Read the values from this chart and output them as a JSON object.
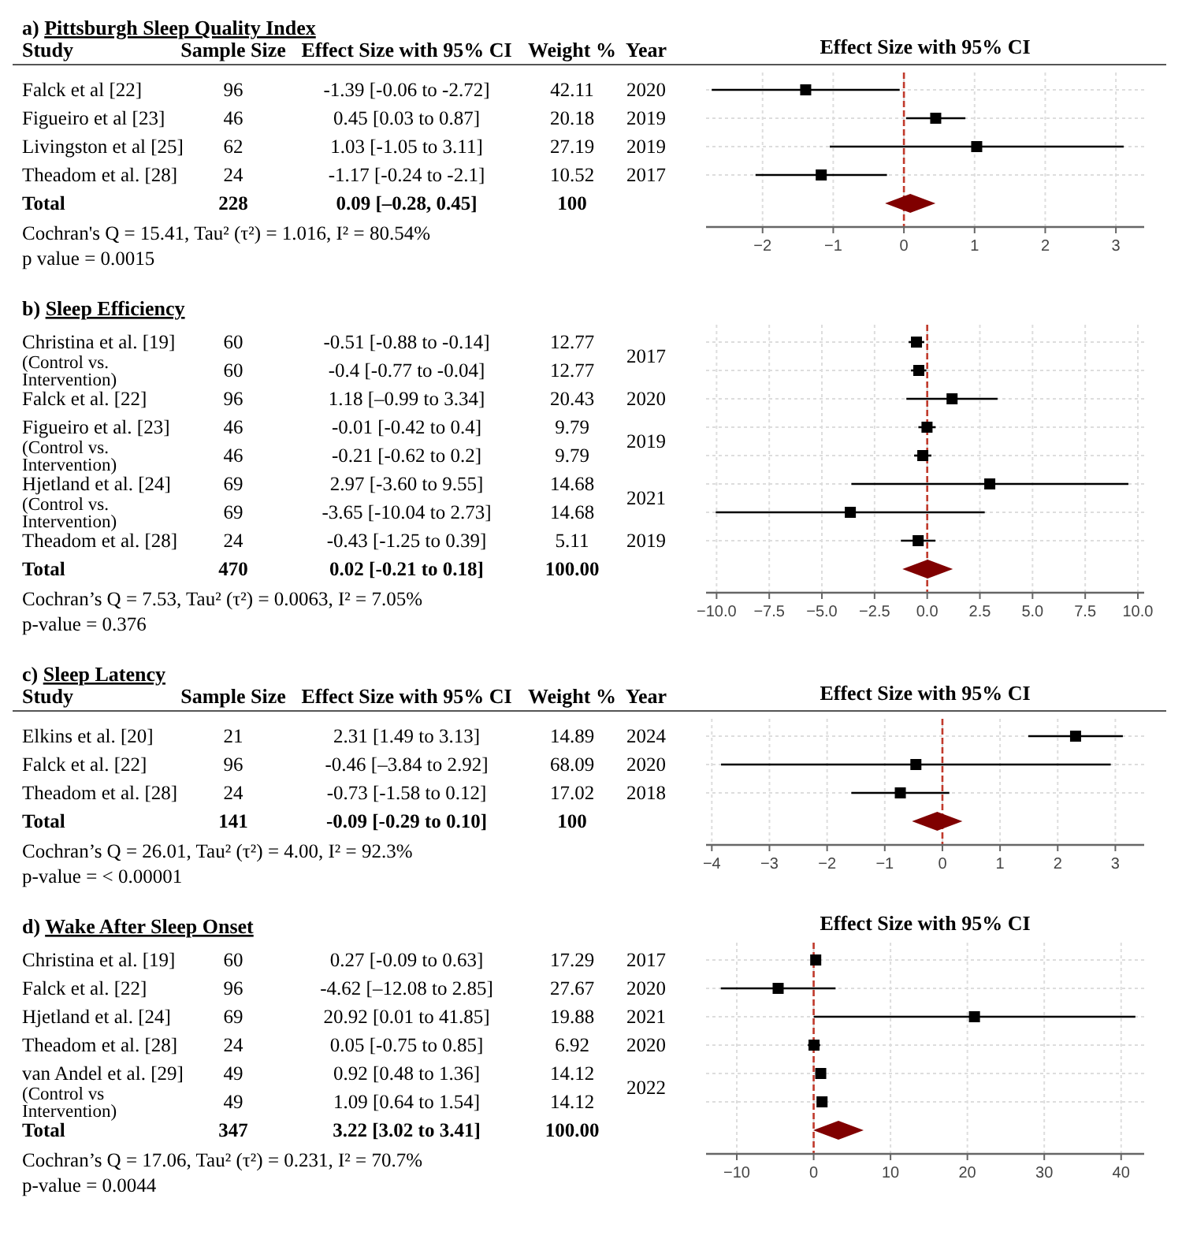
{
  "chart_data": [
    {
      "type": "other",
      "title": "a) Pittsburgh Sleep Quality Index",
      "categories": [
        "Study",
        "Sample Size",
        "Effect Size with 95% CI",
        "Weight %",
        "Year"
      ],
      "cell_labels": [
        [
          "Falck et al  [22]",
          "96",
          "-1.39 [-0.06 to -2.72]",
          "42.11",
          "2020"
        ],
        [
          "Figueiro et al  [23]",
          "46",
          "0.45 [0.03 to 0.87]",
          "20.18",
          "2019"
        ],
        [
          "Livingston et al  [25]",
          "62",
          "1.03 [-1.05 to 3.11]",
          "27.19",
          "2019"
        ],
        [
          "Theadom et al.  [28]",
          "24",
          "-1.17 [-0.24 to -2.1]",
          "10.52",
          "2017"
        ],
        [
          "Total",
          "228",
          "0.09 [–0.28, 0.45]",
          "100",
          null
        ]
      ],
      "annotations": [
        "Cochran's Q = 15.41, Tau² (τ²) = 1.016, I² = 80.54%",
        "p value = 0.0015"
      ]
    },
    {
      "type": "scatter",
      "title": "Effect Size with 95% CI",
      "orientation": "horizontal",
      "categories": [
        null,
        null,
        null,
        null,
        null
      ],
      "xlim": [
        -2.8,
        3.4
      ],
      "xticks": [
        {
          "value": -2,
          "label": "−2"
        },
        {
          "value": -1,
          "label": "−1"
        },
        0,
        1,
        2,
        3
      ],
      "grid": true,
      "series": [
        {
          "color": "#000000",
          "marker": "square",
          "values": [
            -1.39,
            0.45,
            1.03,
            -1.17,
            null
          ],
          "errors": [
            [
              -2.72,
              -0.06
            ],
            [
              0.03,
              0.87
            ],
            [
              -1.05,
              3.11
            ],
            [
              -2.1,
              -0.24
            ],
            null
          ]
        },
        {
          "color": "#800000",
          "marker": "diamond",
          "values": [
            null,
            null,
            null,
            null,
            0.09
          ]
        }
      ],
      "ref_lines": [
        {
          "axis": "x",
          "value": 0,
          "color": "#c0392b",
          "line_style": "dashed"
        }
      ]
    },
    {
      "type": "other",
      "title": "b) Sleep Efficiency",
      "cell_labels": [
        [
          "Christina et al.  [19]",
          "60",
          "-0.51 [-0.88 to -0.14]",
          "12.77",
          "2017"
        ],
        [
          "(Control vs. Intervention)",
          "60",
          "-0.4 [-0.77 to -0.04]",
          "12.77",
          null
        ],
        [
          "Falck et al.  [22]",
          "96",
          "1.18 [–0.99 to 3.34]",
          "20.43",
          "2020"
        ],
        [
          "Figueiro et al.  [23]",
          "46",
          "-0.01 [-0.42 to 0.4]",
          "9.79",
          "2019"
        ],
        [
          "(Control vs. Intervention)",
          "46",
          "-0.21 [-0.62 to 0.2]",
          "9.79",
          null
        ],
        [
          "Hjetland et al.  [24]",
          "69",
          "2.97 [-3.60 to 9.55]",
          "14.68",
          "2021"
        ],
        [
          "(Control vs. Intervention)",
          "69",
          "-3.65 [-10.04 to 2.73]",
          "14.68",
          null
        ],
        [
          "Theadom et al.  [28]",
          "24",
          "-0.43 [-1.25 to 0.39]",
          "5.11",
          "2019"
        ],
        [
          "Total",
          "470",
          "0.02 [-0.21 to 0.18]",
          "100.00",
          null
        ]
      ],
      "annotations": [
        "Cochran’s Q = 7.53, Tau² (τ²) = 0.0063, I² = 7.05%",
        "p-value = 0.376"
      ]
    },
    {
      "type": "scatter",
      "orientation": "horizontal",
      "categories": [
        null,
        null,
        null,
        null,
        null,
        null,
        null,
        null,
        null
      ],
      "xlim": [
        -10.5,
        10.3
      ],
      "xticks": [
        {
          "value": -10,
          "label": "−10.0"
        },
        {
          "value": -7.5,
          "label": "−7.5"
        },
        {
          "value": -5,
          "label": "−5.0"
        },
        {
          "value": -2.5,
          "label": "−2.5"
        },
        {
          "value": 0,
          "label": "0.0"
        },
        {
          "value": 2.5,
          "label": "2.5"
        },
        {
          "value": 5,
          "label": "5.0"
        },
        {
          "value": 7.5,
          "label": "7.5"
        },
        {
          "value": 10,
          "label": "10.0"
        }
      ],
      "grid": true,
      "series": [
        {
          "color": "#000000",
          "marker": "square",
          "values": [
            -0.51,
            -0.4,
            1.18,
            -0.01,
            -0.21,
            2.97,
            -3.65,
            -0.43,
            null
          ],
          "errors": [
            [
              -0.88,
              -0.14
            ],
            [
              -0.77,
              -0.04
            ],
            [
              -0.99,
              3.34
            ],
            [
              -0.42,
              0.4
            ],
            [
              -0.62,
              0.2
            ],
            [
              -3.6,
              9.55
            ],
            [
              -10.04,
              2.73
            ],
            [
              -1.25,
              0.39
            ],
            null
          ]
        },
        {
          "color": "#800000",
          "marker": "diamond",
          "values": [
            null,
            null,
            null,
            null,
            null,
            null,
            null,
            null,
            0.02
          ]
        }
      ],
      "ref_lines": [
        {
          "axis": "x",
          "value": 0,
          "color": "#c0392b",
          "line_style": "dashed"
        }
      ]
    },
    {
      "type": "other",
      "title": "c) Sleep Latency",
      "categories": [
        "Study",
        "Sample Size",
        "Effect Size with 95% CI",
        "Weight %",
        "Year"
      ],
      "cell_labels": [
        [
          "Elkins et al.  [20]",
          "21",
          "2.31 [1.49 to 3.13]",
          "14.89",
          "2024"
        ],
        [
          "Falck et al.  [22]",
          "96",
          "-0.46 [–3.84 to 2.92]",
          "68.09",
          "2020"
        ],
        [
          "Theadom et al.  [28]",
          "24",
          "-0.73 [-1.58 to 0.12]",
          "17.02",
          "2018"
        ],
        [
          "Total",
          "141",
          "-0.09 [-0.29 to 0.10]",
          "100",
          null
        ]
      ],
      "annotations": [
        "Cochran’s Q = 26.01, Tau² (τ²) = 4.00, I² = 92.3%",
        "p-value = < 0.00001"
      ]
    },
    {
      "type": "scatter",
      "title": "Effect Size with 95% CI",
      "orientation": "horizontal",
      "categories": [
        null,
        null,
        null,
        null
      ],
      "xlim": [
        -4.1,
        3.5
      ],
      "xticks": [
        {
          "value": -4,
          "label": "−4"
        },
        {
          "value": -3,
          "label": "−3"
        },
        {
          "value": -2,
          "label": "−2"
        },
        {
          "value": -1,
          "label": "−1"
        },
        0,
        1,
        2,
        3
      ],
      "grid": true,
      "series": [
        {
          "color": "#000000",
          "marker": "square",
          "values": [
            2.31,
            -0.46,
            -0.73,
            null
          ],
          "errors": [
            [
              1.49,
              3.13
            ],
            [
              -3.84,
              2.92
            ],
            [
              -1.58,
              0.12
            ],
            null
          ]
        },
        {
          "color": "#800000",
          "marker": "diamond",
          "values": [
            null,
            null,
            null,
            -0.09
          ]
        }
      ],
      "ref_lines": [
        {
          "axis": "x",
          "value": 0,
          "color": "#c0392b",
          "line_style": "dashed"
        }
      ]
    },
    {
      "type": "other",
      "title": "d) Wake After Sleep Onset",
      "cell_labels": [
        [
          "Christina et al.  [19]",
          "60",
          "0.27 [-0.09 to 0.63]",
          "17.29",
          "2017"
        ],
        [
          "Falck et al.  [22]",
          "96",
          "-4.62 [–12.08 to 2.85]",
          "27.67",
          "2020"
        ],
        [
          "Hjetland et al.  [24]",
          "69",
          "20.92 [0.01 to 41.85]",
          "19.88",
          "2021"
        ],
        [
          "Theadom et al.  [28]",
          "24",
          "0.05 [-0.75 to 0.85]",
          "6.92",
          "2020"
        ],
        [
          "van Andel et al.  [29]",
          "49",
          "0.92 [0.48 to 1.36]",
          "14.12",
          "2022"
        ],
        [
          "(Control vs Intervention)",
          "49",
          "1.09 [0.64 to 1.54]",
          "14.12",
          null
        ],
        [
          "Total",
          "347",
          "3.22 [3.02 to 3.41]",
          "100.00",
          null
        ]
      ],
      "annotations": [
        "Cochran’s Q = 17.06, Tau² (τ²) = 0.231, I² = 70.7%",
        "p-value = 0.0044"
      ]
    },
    {
      "type": "scatter",
      "title": "Effect Size with 95% CI",
      "orientation": "horizontal",
      "categories": [
        null,
        null,
        null,
        null,
        null,
        null,
        null
      ],
      "xlim": [
        -14,
        43
      ],
      "xticks": [
        {
          "value": -10,
          "label": "−10"
        },
        0,
        10,
        20,
        30,
        40
      ],
      "grid": true,
      "series": [
        {
          "color": "#000000",
          "marker": "square",
          "values": [
            0.27,
            -4.62,
            20.92,
            0.05,
            0.92,
            1.09,
            null
          ],
          "errors": [
            [
              -0.09,
              0.63
            ],
            [
              -12.08,
              2.85
            ],
            [
              0.01,
              41.85
            ],
            [
              -0.75,
              0.85
            ],
            [
              0.48,
              1.36
            ],
            [
              0.64,
              1.54
            ],
            null
          ]
        },
        {
          "color": "#800000",
          "marker": "diamond",
          "values": [
            null,
            null,
            null,
            null,
            null,
            null,
            3.22
          ]
        }
      ],
      "ref_lines": [
        {
          "axis": "x",
          "value": 0,
          "color": "#c0392b",
          "line_style": "dashed"
        }
      ]
    }
  ]
}
